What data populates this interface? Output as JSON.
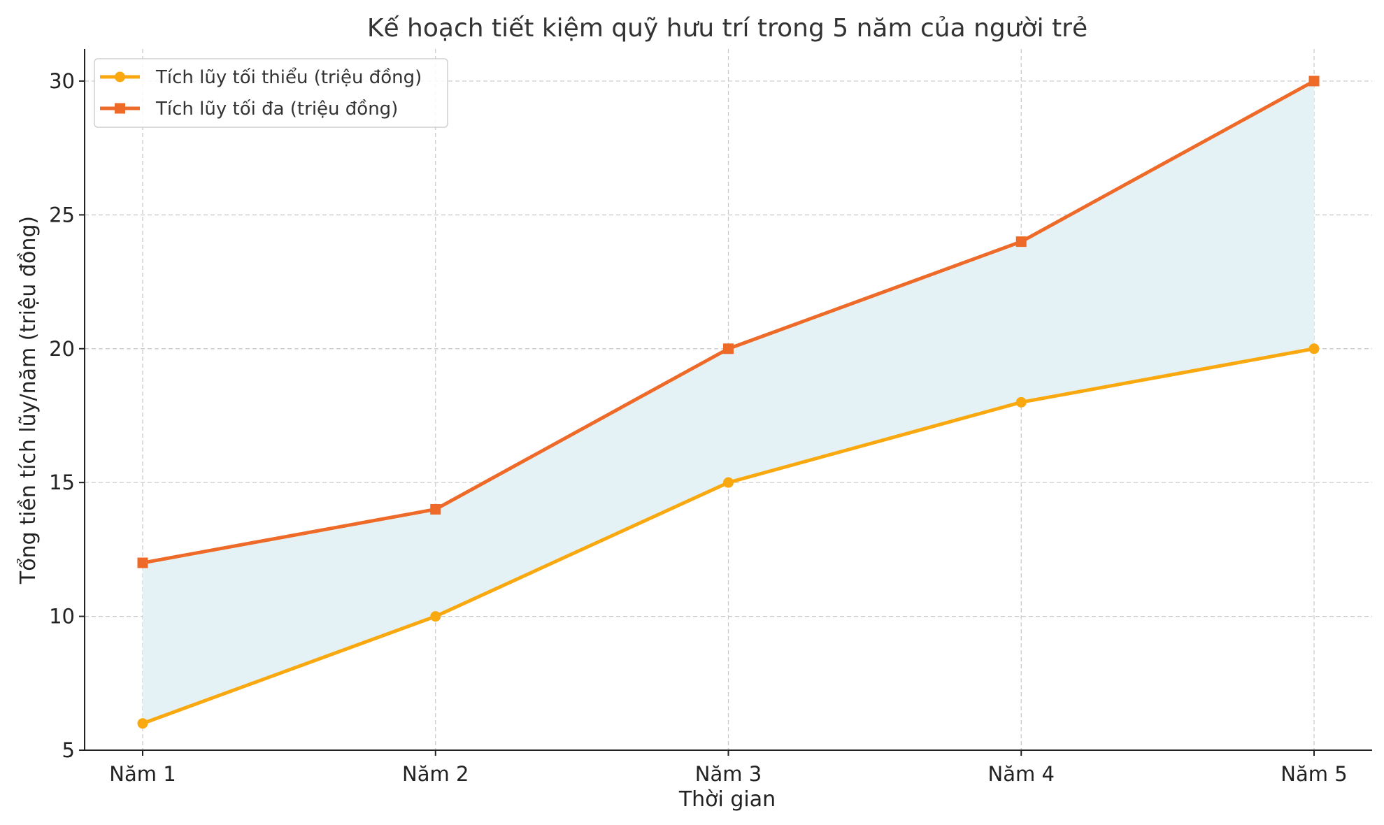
{
  "chart_data": {
    "type": "line",
    "title": "Kế hoạch tiết kiệm quỹ hưu trí trong 5 năm của người trẻ",
    "xlabel": "Thời gian",
    "ylabel": "Tổng tiền tích lũy/năm (triệu đồng)",
    "categories": [
      "Năm 1",
      "Năm 2",
      "Năm 3",
      "Năm 4",
      "Năm 5"
    ],
    "series": [
      {
        "name": "Tích lũy tối thiểu (triệu đồng)",
        "values": [
          6,
          10,
          15,
          18,
          20
        ],
        "color": "#F9A90F",
        "marker": "circle"
      },
      {
        "name": "Tích lũy tối đa (triệu đồng)",
        "values": [
          12,
          14,
          20,
          24,
          30
        ],
        "color": "#EE6A28",
        "marker": "square"
      }
    ],
    "fill_between": {
      "color": "#E4F2F5"
    },
    "ylim": [
      5,
      31.2
    ],
    "yticks": [
      5,
      10,
      15,
      20,
      25,
      30
    ],
    "grid": true,
    "legend_position": "top-left"
  }
}
